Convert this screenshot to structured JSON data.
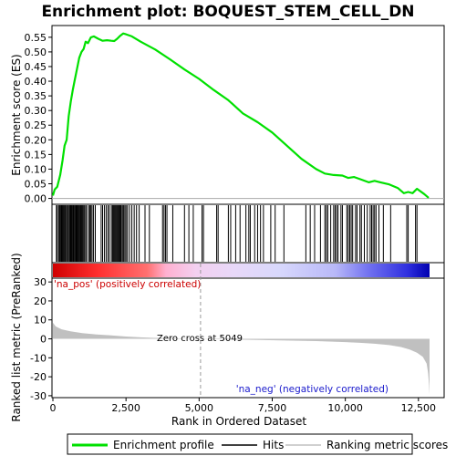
{
  "chart_data": {
    "type": "line",
    "title": "Enrichment plot: BOQUEST_STEM_CELL_DN",
    "xlabel": "Rank in Ordered Dataset",
    "ylabel_top": "Enrichment score (ES)",
    "ylabel_bottom": "Ranked list metric (PreRanked)",
    "xlim": [
      0,
      13000
    ],
    "es_ylim": [
      -0.02,
      0.59
    ],
    "metric_ylim": [
      -31,
      32
    ],
    "x_ticks": [
      0,
      2500,
      5000,
      7500,
      10000,
      12500
    ],
    "x_tick_labels": [
      "0",
      "2,500",
      "5,000",
      "7,500",
      "10,000",
      "12,500"
    ],
    "es_ticks": [
      0.0,
      0.05,
      0.1,
      0.15,
      0.2,
      0.25,
      0.3,
      0.35,
      0.4,
      0.45,
      0.5,
      0.55
    ],
    "es_tick_labels": [
      "0.00",
      "0.05",
      "0.10",
      "0.15",
      "0.20",
      "0.25",
      "0.30",
      "0.35",
      "0.40",
      "0.45",
      "0.50",
      "0.55"
    ],
    "metric_ticks": [
      30,
      20,
      10,
      0,
      -10,
      -20,
      -30
    ],
    "metric_tick_labels": [
      "30",
      "20",
      "10",
      "0",
      "-10",
      "-20",
      "-30"
    ],
    "zero_cross_rank": 5049,
    "annotations": {
      "pos": "'na_pos' (positively correlated)",
      "neg": "'na_neg' (negatively correlated)",
      "zero": "Zero cross at 5049"
    },
    "legend": [
      "Enrichment profile",
      "Hits",
      "Ranking metric scores"
    ],
    "colors": {
      "es_line": "#00e000",
      "hits": "#000000",
      "metric_fill": "#c0c0c0",
      "pos": "#ff0000",
      "neg": "#0000ff",
      "zero_line": "#999999"
    },
    "es_profile": [
      [
        0,
        0.01
      ],
      [
        60,
        0.03
      ],
      [
        150,
        0.04
      ],
      [
        250,
        0.08
      ],
      [
        330,
        0.13
      ],
      [
        400,
        0.18
      ],
      [
        470,
        0.2
      ],
      [
        540,
        0.28
      ],
      [
        610,
        0.33
      ],
      [
        680,
        0.37
      ],
      [
        740,
        0.4
      ],
      [
        820,
        0.44
      ],
      [
        900,
        0.48
      ],
      [
        980,
        0.5
      ],
      [
        1050,
        0.51
      ],
      [
        1120,
        0.535
      ],
      [
        1200,
        0.53
      ],
      [
        1300,
        0.55
      ],
      [
        1400,
        0.553
      ],
      [
        1550,
        0.545
      ],
      [
        1700,
        0.538
      ],
      [
        1850,
        0.54
      ],
      [
        2000,
        0.538
      ],
      [
        2100,
        0.537
      ],
      [
        2200,
        0.545
      ],
      [
        2300,
        0.555
      ],
      [
        2400,
        0.563
      ],
      [
        2500,
        0.56
      ],
      [
        2700,
        0.553
      ],
      [
        3000,
        0.535
      ],
      [
        3500,
        0.508
      ],
      [
        4000,
        0.475
      ],
      [
        4500,
        0.44
      ],
      [
        5000,
        0.408
      ],
      [
        5500,
        0.37
      ],
      [
        6000,
        0.335
      ],
      [
        6500,
        0.29
      ],
      [
        7000,
        0.26
      ],
      [
        7500,
        0.225
      ],
      [
        8000,
        0.18
      ],
      [
        8500,
        0.135
      ],
      [
        9000,
        0.1
      ],
      [
        9300,
        0.085
      ],
      [
        9600,
        0.08
      ],
      [
        9900,
        0.078
      ],
      [
        10100,
        0.07
      ],
      [
        10300,
        0.073
      ],
      [
        10500,
        0.066
      ],
      [
        10800,
        0.055
      ],
      [
        11000,
        0.06
      ],
      [
        11200,
        0.055
      ],
      [
        11500,
        0.048
      ],
      [
        11800,
        0.035
      ],
      [
        12000,
        0.018
      ],
      [
        12150,
        0.022
      ],
      [
        12300,
        0.018
      ],
      [
        12450,
        0.033
      ],
      [
        12700,
        0.015
      ],
      [
        12850,
        0.002
      ]
    ],
    "metric_profile": [
      [
        0,
        8.5
      ],
      [
        100,
        6.5
      ],
      [
        300,
        5.0
      ],
      [
        600,
        4.0
      ],
      [
        1000,
        3.0
      ],
      [
        1500,
        2.3
      ],
      [
        2000,
        1.8
      ],
      [
        2500,
        1.2
      ],
      [
        3000,
        0.8
      ],
      [
        3500,
        0.5
      ],
      [
        4000,
        0.3
      ],
      [
        4500,
        0.15
      ],
      [
        5049,
        0
      ],
      [
        6000,
        -0.3
      ],
      [
        7000,
        -0.6
      ],
      [
        8000,
        -0.9
      ],
      [
        9000,
        -1.2
      ],
      [
        10000,
        -1.7
      ],
      [
        10500,
        -2.1
      ],
      [
        11000,
        -2.6
      ],
      [
        11500,
        -3.3
      ],
      [
        11900,
        -4.3
      ],
      [
        12200,
        -5.6
      ],
      [
        12450,
        -7.3
      ],
      [
        12650,
        -9.5
      ],
      [
        12780,
        -13
      ],
      [
        12830,
        -18
      ],
      [
        12860,
        -24
      ],
      [
        12880,
        -29.5
      ]
    ],
    "hit_ranks": [
      120,
      150,
      200,
      230,
      260,
      290,
      310,
      340,
      370,
      400,
      430,
      460,
      500,
      520,
      560,
      590,
      610,
      640,
      660,
      690,
      710,
      740,
      760,
      790,
      810,
      840,
      870,
      900,
      930,
      950,
      980,
      1010,
      1040,
      1080,
      1120,
      1160,
      1230,
      1270,
      1300,
      1340,
      1390,
      1450,
      1650,
      1700,
      1760,
      1820,
      1880,
      1930,
      2000,
      2040,
      2070,
      2100,
      2130,
      2160,
      2190,
      2220,
      2250,
      2280,
      2310,
      2340,
      2380,
      2420,
      2460,
      2500,
      2550,
      2620,
      2700,
      2780,
      2860,
      2950,
      3150,
      3300,
      3750,
      3800,
      3850,
      3900,
      4100,
      4500,
      4650,
      4800,
      5100,
      5150,
      5600,
      5650,
      6000,
      6080,
      6250,
      6400,
      6600,
      6700,
      6750,
      6900,
      7000,
      7100,
      7200,
      7450,
      7600,
      7900,
      8650,
      8800,
      8950,
      9150,
      9300,
      9350,
      9400,
      9500,
      9600,
      9650,
      9700,
      9750,
      9850,
      9900,
      10050,
      10100,
      10150,
      10200,
      10250,
      10350,
      10400,
      10500,
      10550,
      10650,
      10750,
      10850,
      10900,
      10950,
      11000,
      11050,
      11150,
      11300,
      11550,
      12100,
      12150,
      12400,
      12450
    ]
  }
}
